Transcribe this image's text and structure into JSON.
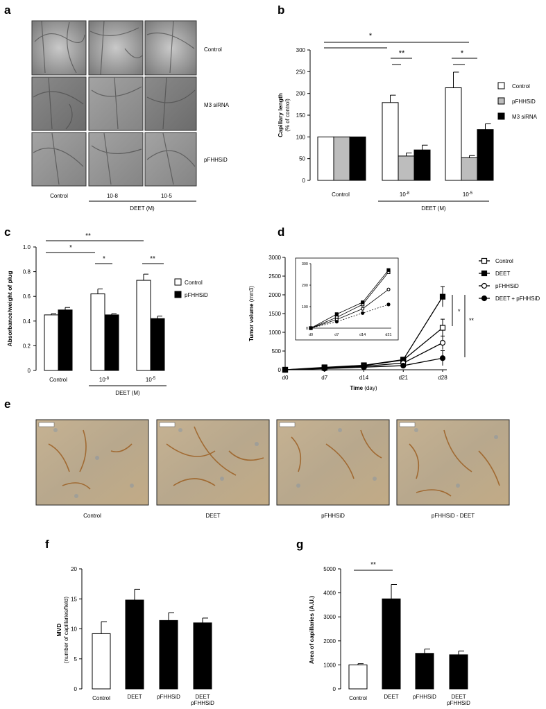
{
  "panels": {
    "a": {
      "letter": "a",
      "row_labels": [
        "Control",
        "M3 siRNA",
        "pFHHSiD"
      ],
      "col_labels": [
        "Control",
        "10-8",
        "10-5"
      ],
      "group_label": "DEET (M)"
    },
    "e": {
      "letter": "e",
      "labels": [
        "Control",
        "DEET",
        "pFHHSiD",
        "pFHHSiD - DEET"
      ]
    }
  },
  "chart_data": [
    {
      "panel": "b",
      "type": "bar",
      "ylabel": "Capillary length",
      "ylabel2": "(% of control)",
      "ylim": [
        0,
        300
      ],
      "yticks": [
        0,
        50,
        100,
        150,
        200,
        250,
        300
      ],
      "categories": [
        "Control",
        "10-8",
        "10-5"
      ],
      "group_label": "DEET (M)",
      "series": [
        {
          "name": "Control",
          "color": "#ffffff",
          "values": [
            100,
            179,
            213
          ],
          "errors": [
            0,
            17,
            36
          ]
        },
        {
          "name": "pFHHSiD",
          "color": "#bdbdbd",
          "values": [
            100,
            56,
            52
          ],
          "errors": [
            0,
            7,
            5
          ]
        },
        {
          "name": "M3 siRNA",
          "color": "#000000",
          "values": [
            100,
            70,
            117
          ],
          "errors": [
            0,
            11,
            13
          ]
        }
      ],
      "significance": [
        "*",
        "**",
        "*"
      ]
    },
    {
      "panel": "c",
      "type": "bar",
      "ylabel": "Absorbance/weight of plug",
      "ylim": [
        0,
        1.0
      ],
      "yticks": [
        "0",
        "0.2",
        "0.4",
        "0.6",
        "0.8",
        "1.0"
      ],
      "categories": [
        "Control",
        "10-8",
        "10-5"
      ],
      "group_label": "DEET (M)",
      "series": [
        {
          "name": "Control",
          "color": "#ffffff",
          "values": [
            0.45,
            0.62,
            0.73
          ],
          "errors": [
            0.01,
            0.04,
            0.05
          ]
        },
        {
          "name": "pFHHSiD",
          "color": "#000000",
          "values": [
            0.49,
            0.45,
            0.42
          ],
          "errors": [
            0.02,
            0.01,
            0.02
          ]
        }
      ],
      "significance": [
        "**",
        "*",
        "*",
        "**"
      ]
    },
    {
      "panel": "d",
      "type": "line",
      "ylabel": "Tumor volume",
      "ylabel_unit": "(mm3)",
      "xlabel": "Time",
      "xlabel_unit": "(day)",
      "x": [
        "d0",
        "d7",
        "d14",
        "d21",
        "d28"
      ],
      "ylim": [
        0,
        3000
      ],
      "yticks": [
        0,
        500,
        1000,
        1500,
        2000,
        2500,
        3000
      ],
      "series": [
        {
          "name": "Control",
          "marker": "open-square",
          "values": [
            0,
            50,
            110,
            260,
            1120
          ],
          "errors": [
            0,
            15,
            20,
            40,
            230
          ]
        },
        {
          "name": "DEET",
          "marker": "filled-square",
          "values": [
            0,
            65,
            120,
            270,
            1950
          ],
          "errors": [
            0,
            15,
            20,
            40,
            270
          ]
        },
        {
          "name": "pFHHSiD",
          "marker": "open-circle",
          "values": [
            0,
            40,
            90,
            180,
            720
          ],
          "errors": [
            0,
            10,
            15,
            30,
            180
          ]
        },
        {
          "name": "DEET + pFHHSiD",
          "marker": "filled-circle",
          "values": [
            0,
            30,
            70,
            110,
            310
          ],
          "errors": [
            0,
            10,
            15,
            25,
            200
          ]
        }
      ],
      "inset": {
        "x": [
          "d0",
          "d7",
          "d14",
          "d21"
        ],
        "ylim": [
          0,
          300
        ],
        "yticks": [
          0,
          100,
          200,
          300
        ],
        "series": [
          {
            "name": "Control",
            "values": [
              0,
              50,
              110,
              260
            ]
          },
          {
            "name": "DEET",
            "values": [
              0,
              65,
              120,
              270
            ]
          },
          {
            "name": "pFHHSiD",
            "values": [
              0,
              40,
              90,
              180
            ]
          },
          {
            "name": "DEET + pFHHSiD",
            "values": [
              0,
              30,
              70,
              110
            ]
          }
        ]
      },
      "significance": [
        "*",
        "**"
      ]
    },
    {
      "panel": "f",
      "type": "bar",
      "ylabel": "MVD",
      "ylabel2": "(number of capillaries/field)",
      "ylim": [
        0,
        20
      ],
      "yticks": [
        0,
        5,
        10,
        15,
        20
      ],
      "categories": [
        "Control",
        "DEET",
        "pFHHSiD",
        "DEET pFHHSiD"
      ],
      "values": [
        9.2,
        14.8,
        11.4,
        11.0
      ],
      "errors": [
        2.0,
        1.8,
        1.3,
        0.8
      ],
      "colors": [
        "#ffffff",
        "#000000",
        "#000000",
        "#000000"
      ]
    },
    {
      "panel": "g",
      "type": "bar",
      "ylabel": "Area of capillaries (A.U.)",
      "ylim": [
        0,
        5000
      ],
      "yticks": [
        0,
        1000,
        2000,
        3000,
        4000,
        5000
      ],
      "categories": [
        "Control",
        "DEET",
        "pFHHSiD",
        "DEET pFHHSiD"
      ],
      "values": [
        1000,
        3750,
        1480,
        1420
      ],
      "errors": [
        50,
        600,
        180,
        160
      ],
      "colors": [
        "#ffffff",
        "#000000",
        "#000000",
        "#000000"
      ],
      "significance": [
        "**"
      ]
    }
  ]
}
